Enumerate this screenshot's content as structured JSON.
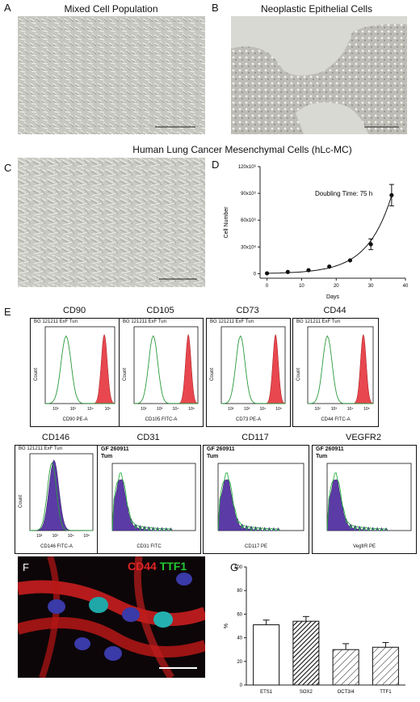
{
  "panels": {
    "A": {
      "label": "A",
      "title": "Mixed Cell Population"
    },
    "B": {
      "label": "B",
      "title": "Neoplastic Epithelial Cells"
    },
    "C": {
      "label": "C"
    },
    "CD_title": "Human Lung Cancer  Mesenchymal Cells (hLc-MC)",
    "D": {
      "label": "D"
    },
    "E": {
      "label": "E"
    },
    "F": {
      "label": "F",
      "stain1": "CD44",
      "stain2": "TTF1"
    },
    "G": {
      "label": "G"
    }
  },
  "facs": [
    {
      "title": "CD90",
      "head": "BG 121211 ExF Tun",
      "xlabel": "CD90 PE-A",
      "ylabel": "Count",
      "fill": "#e8474f",
      "type": "neg"
    },
    {
      "title": "CD105",
      "head": "BG 121211 ExF Tun",
      "xlabel": "CD105 FITC-A",
      "ylabel": "Count",
      "fill": "#e8474f",
      "type": "neg"
    },
    {
      "title": "CD73",
      "head": "BG 121211 ExF Tun",
      "xlabel": "CD73 PE-A",
      "ylabel": "Count",
      "fill": "#e8474f",
      "type": "neg"
    },
    {
      "title": "CD44",
      "head": "BG 121211 ExF Tun",
      "xlabel": "CD44 FITC-A",
      "ylabel": "Count",
      "fill": "#e8474f",
      "type": "neg"
    },
    {
      "title": "CD146",
      "head": "BG 121211 ExF Tun",
      "xlabel": "CD146 FITC-A",
      "ylabel": "Count",
      "fill": "#5b3ba5",
      "type": "neg"
    },
    {
      "title": "CD31",
      "head": "GF 260911",
      "head2": "Tum",
      "xlabel": "CD31 FITC",
      "ylabel": "",
      "fill": "#5b3ba5",
      "type": "wide"
    },
    {
      "title": "CD117",
      "head": "GF 260911",
      "head2": "Tum",
      "xlabel": "CD117 PE",
      "ylabel": "",
      "fill": "#5b3ba5",
      "type": "wide"
    },
    {
      "title": "VEGFR2",
      "head": "GF 260911",
      "head2": "Tum",
      "xlabel": "VegfrR PE",
      "ylabel": "",
      "fill": "#5b3ba5",
      "type": "wide"
    }
  ],
  "chart_data": [
    {
      "type": "line",
      "panel": "D",
      "x": [
        0,
        6,
        12,
        18,
        24,
        30,
        36
      ],
      "y": [
        0.5,
        2,
        4,
        8,
        15,
        33,
        88
      ],
      "yerr": [
        0,
        0,
        0,
        0,
        0,
        6,
        12
      ],
      "y_unit": "x10^6",
      "xlabel": "Days",
      "ylabel": "Cell Number",
      "xlim": [
        -2,
        40
      ],
      "ylim": [
        -5,
        120
      ],
      "xticks": [
        "0",
        "10",
        "20",
        "30",
        "40"
      ],
      "yticks": [
        "0",
        "30x10⁶",
        "60x10⁶",
        "90x10⁶",
        "120x10⁶"
      ],
      "annotation": "Doubling Time: 75 h"
    },
    {
      "type": "bar",
      "panel": "G",
      "categories": [
        "ETS1",
        "SOX2",
        "OCT3/4",
        "TTF1"
      ],
      "values": [
        51,
        54,
        30,
        32
      ],
      "errors": [
        4,
        4,
        5,
        4
      ],
      "patterns": [
        "white",
        "dense-hatch",
        "hatch",
        "hatch"
      ],
      "ylabel": "%",
      "ylim": [
        0,
        100
      ],
      "yticks": [
        "0",
        "20",
        "40",
        "60",
        "80",
        "100"
      ]
    }
  ]
}
